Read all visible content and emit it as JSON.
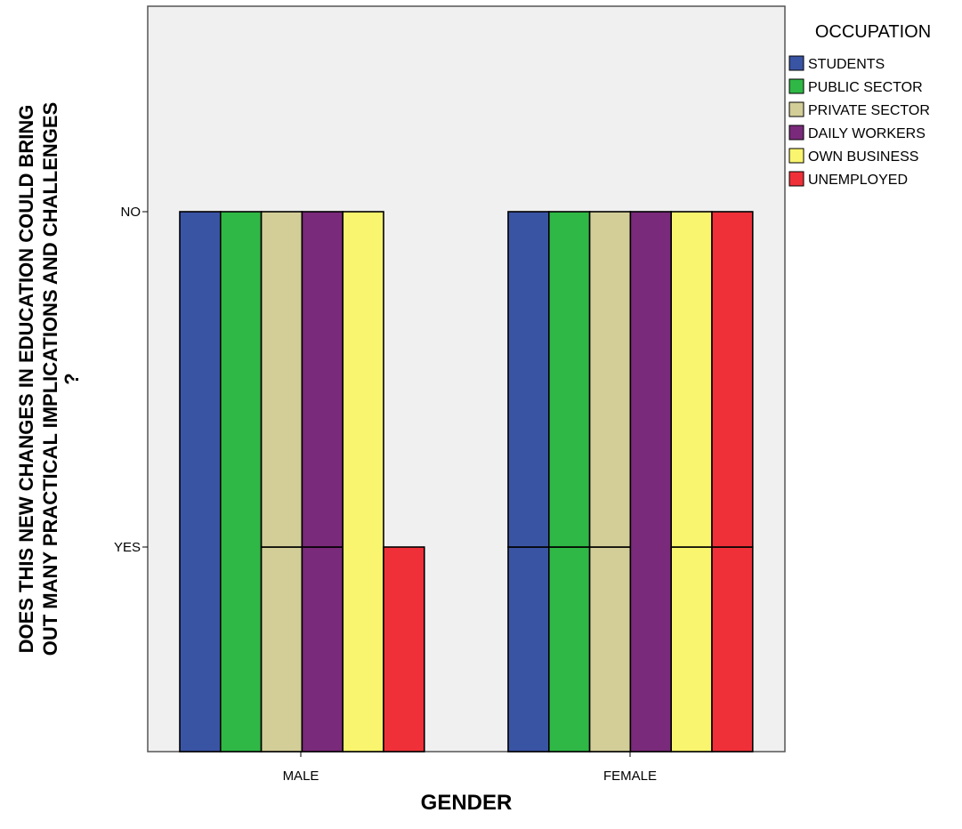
{
  "chart_data": {
    "type": "bar",
    "stacking": "clustered, stacked by response",
    "categories": [
      "MALE",
      "FEMALE"
    ],
    "xlabel": "GENDER",
    "ylabel": "DOES THIS NEW CHANGES IN EDUCATION COULD BRING OUT MANY PRACTICAL IMPLICATIONS AND CHALLENGES ?",
    "ylabel_lines": [
      "DOES THIS NEW CHANGES IN EDUCATION COULD BRING",
      "OUT MANY PRACTICAL IMPLICATIONS AND CHALLENGES",
      "?"
    ],
    "yticks": [
      "YES",
      "NO"
    ],
    "legend_title": "OCCUPATION",
    "legend_placement": "right",
    "grid": false,
    "plot_background": "#f0f0f0",
    "series": [
      {
        "name": "STUDENTS",
        "color": "#3a54a4",
        "values": {
          "MALE": [
            "NO"
          ],
          "FEMALE": [
            "YES",
            "NO"
          ]
        }
      },
      {
        "name": "PUBLIC SECTOR",
        "color": "#2fb845",
        "values": {
          "MALE": [
            "NO"
          ],
          "FEMALE": [
            "YES",
            "NO"
          ]
        }
      },
      {
        "name": "PRIVATE SECTOR",
        "color": "#d3ce98",
        "values": {
          "MALE": [
            "YES",
            "NO"
          ],
          "FEMALE": [
            "YES",
            "NO"
          ]
        }
      },
      {
        "name": "DAILY WORKERS",
        "color": "#7a2a7a",
        "values": {
          "MALE": [
            "YES",
            "NO"
          ],
          "FEMALE": [
            "NO"
          ]
        }
      },
      {
        "name": "OWN BUSINESS",
        "color": "#f9f56e",
        "values": {
          "MALE": [
            "NO"
          ],
          "FEMALE": [
            "YES",
            "NO"
          ]
        }
      },
      {
        "name": "UNEMPLOYED",
        "color": "#ef3038",
        "values": {
          "MALE": [
            "YES"
          ],
          "FEMALE": [
            "YES",
            "NO"
          ]
        }
      }
    ]
  }
}
